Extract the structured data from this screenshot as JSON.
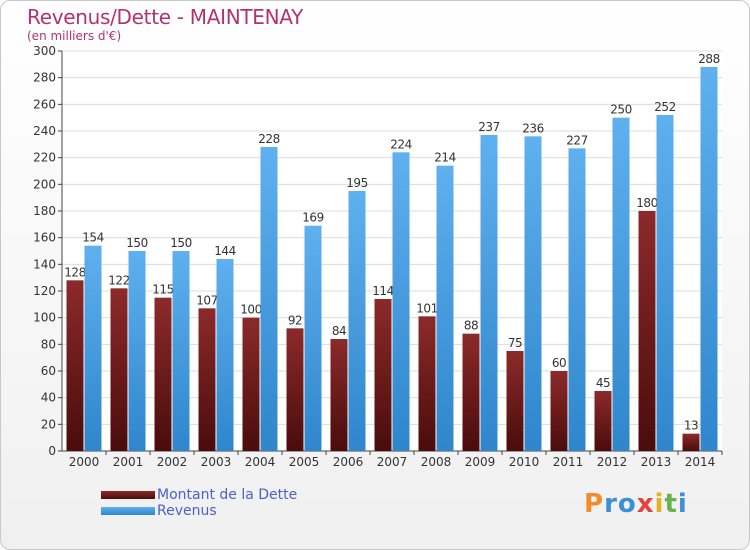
{
  "chart_data": {
    "type": "bar",
    "title": "Revenus/Dette - MAINTENAY",
    "subtitle": "(en milliers d'€)",
    "categories": [
      "2000",
      "2001",
      "2002",
      "2003",
      "2004",
      "2005",
      "2006",
      "2007",
      "2008",
      "2009",
      "2010",
      "2011",
      "2012",
      "2013",
      "2014"
    ],
    "series": [
      {
        "name": "Montant de la Dette",
        "color": "#7a1f1f",
        "values": [
          128,
          122,
          115,
          107,
          100,
          92,
          84,
          114,
          101,
          88,
          75,
          60,
          45,
          180,
          13
        ],
        "labels": [
          "128",
          "122",
          "115",
          "107",
          "100",
          "92",
          "84",
          "114",
          "101",
          "88",
          "75",
          "60",
          "45",
          "180",
          "13"
        ]
      },
      {
        "name": "Revenus",
        "color": "#4aa3e6",
        "values": [
          154,
          150,
          150,
          144,
          228,
          169,
          195,
          224,
          214,
          237,
          236,
          227,
          250,
          252,
          288
        ],
        "labels": [
          "154",
          "150",
          "150",
          "144",
          "228",
          "169",
          "195",
          "224",
          "214",
          "237",
          "236",
          "227",
          "250",
          "252",
          "288"
        ]
      }
    ],
    "ylim": [
      0,
      300
    ],
    "yticks": [
      0,
      20,
      40,
      60,
      80,
      100,
      120,
      140,
      160,
      180,
      200,
      220,
      240,
      260,
      280,
      300
    ],
    "grid": true,
    "legend_position": "bottom-left"
  },
  "logo": {
    "text": "Proxiti",
    "letters": [
      "P",
      "r",
      "o",
      "x",
      "i",
      "t",
      "i"
    ],
    "colors": [
      "#f28c28",
      "#3a8fd8",
      "#3a8fd8",
      "#e8403a",
      "#e8b020",
      "#6ab04c",
      "#3a8fd8"
    ]
  }
}
